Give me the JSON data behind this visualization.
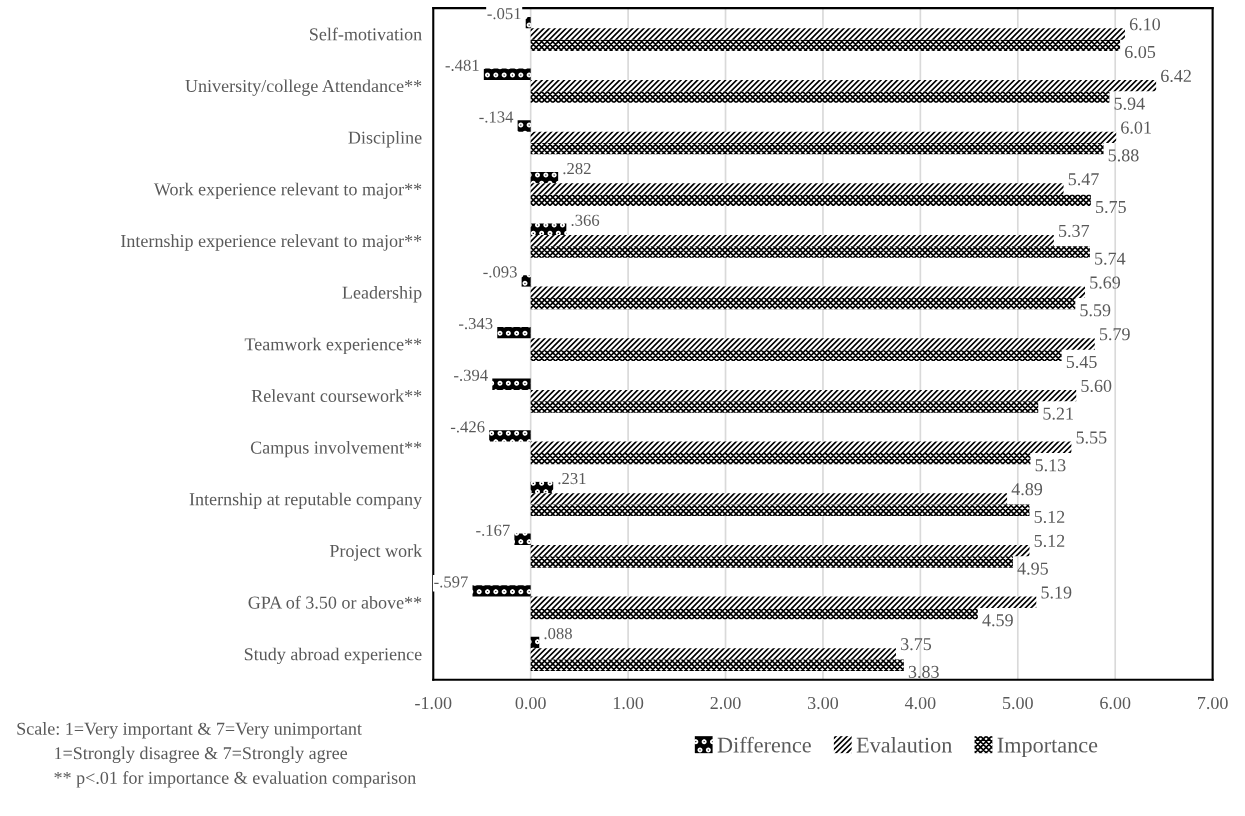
{
  "chart_data": {
    "type": "bar",
    "orientation": "horizontal",
    "categories": [
      "Self-motivation",
      "University/college Attendance**",
      "Discipline",
      "Work experience relevant to major**",
      "Internship experience relevant to major**",
      "Leadership",
      "Teamwork experience**",
      "Relevant coursework**",
      "Campus involvement**",
      "Internship at reputable company",
      "Project work",
      "GPA of 3.50 or above**",
      "Study abroad experience"
    ],
    "series": [
      {
        "name": "Difference",
        "color": "#000000",
        "values": [
          -0.051,
          -0.481,
          -0.134,
          0.282,
          0.366,
          -0.093,
          -0.343,
          -0.394,
          -0.426,
          0.231,
          -0.167,
          -0.597,
          0.088
        ],
        "value_labels": [
          "-.051",
          "-.481",
          "-.134",
          ".282",
          ".366",
          "-.093",
          "-.343",
          "-.394",
          "-.426",
          ".231",
          "-.167",
          "-.597",
          ".088"
        ]
      },
      {
        "name": "Evalaution",
        "color": "#000000",
        "values": [
          6.1,
          6.42,
          6.01,
          5.47,
          5.37,
          5.69,
          5.79,
          5.6,
          5.55,
          4.89,
          5.12,
          5.19,
          3.75
        ],
        "value_labels": [
          "6.10",
          "6.42",
          "6.01",
          "5.47",
          "5.37",
          "5.69",
          "5.79",
          "5.60",
          "5.55",
          "4.89",
          "5.12",
          "5.19",
          "3.75"
        ]
      },
      {
        "name": "Importance",
        "color": "#000000",
        "values": [
          6.05,
          5.94,
          5.88,
          5.75,
          5.74,
          5.59,
          5.45,
          5.21,
          5.13,
          5.12,
          4.95,
          4.59,
          3.83
        ],
        "value_labels": [
          "6.05",
          "5.94",
          "5.88",
          "5.75",
          "5.74",
          "5.59",
          "5.45",
          "5.21",
          "5.13",
          "5.12",
          "4.95",
          "4.59",
          "3.83"
        ]
      }
    ],
    "xlim": [
      -1,
      7
    ],
    "xticks": [
      {
        "value": -1,
        "label": "-1.00"
      },
      {
        "value": 0,
        "label": "0.00"
      },
      {
        "value": 1,
        "label": "1.00"
      },
      {
        "value": 2,
        "label": "2.00"
      },
      {
        "value": 3,
        "label": "3.00"
      },
      {
        "value": 4,
        "label": "4.00"
      },
      {
        "value": 5,
        "label": "5.00"
      },
      {
        "value": 6,
        "label": "6.00"
      },
      {
        "value": 7,
        "label": "7.00"
      }
    ],
    "grid": "x",
    "legend": "bottom right",
    "annotations": [
      "Scale: 1=Very important & 7=Very unimportant",
      "1=Strongly disagree & 7=Strongly agree",
      "** p<.01 for importance & evaluation comparison"
    ]
  }
}
